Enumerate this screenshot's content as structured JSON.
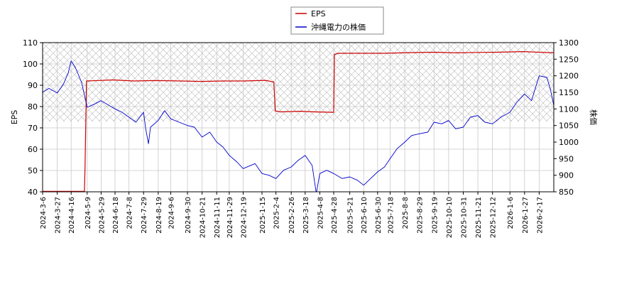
{
  "chart_data": {
    "type": "line",
    "title": "",
    "xlabel": "",
    "ylabel_left": "EPS",
    "ylabel_right": "株価",
    "legend_position": "top-center",
    "grid": true,
    "hatched_band": {
      "from": 73,
      "to": 110,
      "axis": "left"
    },
    "ylim_left": [
      40,
      110
    ],
    "ylim_right": [
      850,
      1300
    ],
    "yticks_left": [
      "40",
      "50",
      "60",
      "70",
      "80",
      "90",
      "100",
      "110"
    ],
    "yticks_right": [
      "850",
      "900",
      "950",
      "1000",
      "1050",
      "1100",
      "1150",
      "1200",
      "1250",
      "1300"
    ],
    "xticks": [
      "2024-3-6",
      "2024-3-27",
      "2024-4-16",
      "2024-5-9",
      "2024-5-29",
      "2024-6-18",
      "2024-7-8",
      "2024-7-29",
      "2024-8-19",
      "2024-9-6",
      "2024-9-30",
      "2024-10-21",
      "2024-11-11",
      "2024-11-29",
      "2024-12-19",
      "2025-1-15",
      "2025-2-4",
      "2025-2-26",
      "2025-3-18",
      "2025-4-8",
      "2025-4-28",
      "2025-5-21",
      "2025-6-10",
      "2025-6-30",
      "2025-7-18",
      "2025-8-8",
      "2025-8-29",
      "2025-9-19",
      "2025-10-10",
      "2025-10-31",
      "2025-11-21",
      "2025-12-12",
      "2026-1-6",
      "2026-1-27",
      "2026-2-17"
    ],
    "x_range": [
      "2024-3-6",
      "2026-3-10"
    ],
    "series": [
      {
        "name": "EPS",
        "axis": "left",
        "color": "#cc0000",
        "x": [
          "2024-3-6",
          "2024-5-5",
          "2024-5-6",
          "2024-5-8",
          "2024-6-15",
          "2024-7-15",
          "2024-8-15",
          "2024-9-20",
          "2024-10-20",
          "2024-11-20",
          "2024-12-20",
          "2025-1-20",
          "2025-2-1",
          "2025-2-3",
          "2025-2-10",
          "2025-3-10",
          "2025-4-1",
          "2025-4-28",
          "2025-4-29",
          "2025-5-5",
          "2025-6-10",
          "2025-7-10",
          "2025-8-15",
          "2025-9-20",
          "2025-10-20",
          "2025-11-20",
          "2025-12-20",
          "2026-1-25",
          "2026-3-10"
        ],
        "values": [
          40.2,
          40.2,
          52,
          92,
          92.5,
          92,
          92.2,
          92,
          91.8,
          92,
          92,
          92.3,
          91.5,
          78,
          77.5,
          77.8,
          77.5,
          77.3,
          104.5,
          105,
          105,
          105,
          105.3,
          105.5,
          105.2,
          105.4,
          105.5,
          105.8,
          105.2
        ]
      },
      {
        "name": "沖縄電力の株価",
        "axis": "right",
        "color": "#0000cc",
        "x": [
          "2024-3-6",
          "2024-3-15",
          "2024-3-27",
          "2024-4-5",
          "2024-4-12",
          "2024-4-16",
          "2024-4-22",
          "2024-5-1",
          "2024-5-9",
          "2024-5-20",
          "2024-5-29",
          "2024-6-10",
          "2024-6-18",
          "2024-6-28",
          "2024-7-8",
          "2024-7-18",
          "2024-7-29",
          "2024-8-1",
          "2024-8-5",
          "2024-8-8",
          "2024-8-19",
          "2024-8-28",
          "2024-9-6",
          "2024-9-18",
          "2024-9-30",
          "2024-10-10",
          "2024-10-21",
          "2024-11-1",
          "2024-11-11",
          "2024-11-20",
          "2024-11-29",
          "2024-12-10",
          "2024-12-19",
          "2025-1-5",
          "2025-1-15",
          "2025-1-25",
          "2025-2-4",
          "2025-2-15",
          "2025-2-26",
          "2025-3-8",
          "2025-3-18",
          "2025-3-28",
          "2025-4-3",
          "2025-4-8",
          "2025-4-18",
          "2025-4-28",
          "2025-5-10",
          "2025-5-21",
          "2025-6-1",
          "2025-6-10",
          "2025-6-20",
          "2025-6-30",
          "2025-7-10",
          "2025-7-18",
          "2025-7-28",
          "2025-8-8",
          "2025-8-18",
          "2025-8-29",
          "2025-9-10",
          "2025-9-19",
          "2025-9-30",
          "2025-10-10",
          "2025-10-20",
          "2025-10-31",
          "2025-11-10",
          "2025-11-21",
          "2025-12-1",
          "2025-12-12",
          "2025-12-24",
          "2026-1-6",
          "2026-1-16",
          "2026-1-27",
          "2026-2-6",
          "2026-2-17",
          "2026-2-28",
          "2026-3-5",
          "2026-3-10"
        ],
        "values": [
          1150,
          1162,
          1148,
          1175,
          1210,
          1245,
          1225,
          1180,
          1105,
          1115,
          1125,
          1110,
          1100,
          1090,
          1075,
          1060,
          1090,
          1040,
          995,
          1045,
          1065,
          1095,
          1070,
          1060,
          1050,
          1045,
          1015,
          1030,
          1000,
          985,
          960,
          940,
          920,
          935,
          905,
          900,
          890,
          915,
          925,
          945,
          960,
          930,
          845,
          905,
          915,
          905,
          890,
          895,
          885,
          870,
          890,
          910,
          925,
          950,
          980,
          1000,
          1020,
          1025,
          1030,
          1060,
          1055,
          1065,
          1040,
          1045,
          1075,
          1080,
          1060,
          1055,
          1075,
          1090,
          1120,
          1145,
          1125,
          1200,
          1195,
          1160,
          1110
        ]
      }
    ]
  }
}
